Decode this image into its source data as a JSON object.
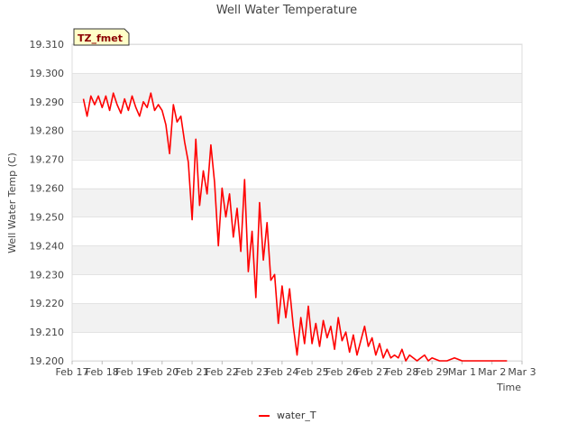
{
  "chart_data": {
    "type": "line",
    "title": "Well Water Temperature",
    "xlabel": "Time",
    "ylabel": "Well Water Temp (C)",
    "badge": "TZ_fmet",
    "x_ticks": [
      "Feb 17",
      "Feb 18",
      "Feb 19",
      "Feb 20",
      "Feb 21",
      "Feb 22",
      "Feb 23",
      "Feb 24",
      "Feb 25",
      "Feb 26",
      "Feb 27",
      "Feb 28",
      "Feb 29",
      "Mar 1",
      "Mar 2",
      "Mar 3"
    ],
    "y_ticks": [
      "19.200",
      "19.210",
      "19.220",
      "19.230",
      "19.240",
      "19.250",
      "19.260",
      "19.270",
      "19.280",
      "19.290",
      "19.300",
      "19.310"
    ],
    "xlim": [
      "Feb 17",
      "Mar 3"
    ],
    "ylim": [
      19.2,
      19.31
    ],
    "grid": "horizontal bands",
    "legend_position": "bottom-center",
    "series": [
      {
        "name": "water_T",
        "color": "#ff0000",
        "points": [
          [
            "Feb 17 09:00",
            19.291
          ],
          [
            "Feb 17 12:00",
            19.285
          ],
          [
            "Feb 17 15:00",
            19.292
          ],
          [
            "Feb 17 18:00",
            19.289
          ],
          [
            "Feb 17 21:00",
            19.292
          ],
          [
            "Feb 18 00:00",
            19.288
          ],
          [
            "Feb 18 03:00",
            19.292
          ],
          [
            "Feb 18 06:00",
            19.287
          ],
          [
            "Feb 18 09:00",
            19.293
          ],
          [
            "Feb 18 12:00",
            19.289
          ],
          [
            "Feb 18 15:00",
            19.286
          ],
          [
            "Feb 18 18:00",
            19.291
          ],
          [
            "Feb 18 21:00",
            19.287
          ],
          [
            "Feb 19 00:00",
            19.292
          ],
          [
            "Feb 19 03:00",
            19.288
          ],
          [
            "Feb 19 06:00",
            19.285
          ],
          [
            "Feb 19 09:00",
            19.29
          ],
          [
            "Feb 19 12:00",
            19.288
          ],
          [
            "Feb 19 15:00",
            19.293
          ],
          [
            "Feb 19 18:00",
            19.287
          ],
          [
            "Feb 19 21:00",
            19.289
          ],
          [
            "Feb 20 00:00",
            19.287
          ],
          [
            "Feb 20 03:00",
            19.282
          ],
          [
            "Feb 20 06:00",
            19.272
          ],
          [
            "Feb 20 09:00",
            19.289
          ],
          [
            "Feb 20 12:00",
            19.283
          ],
          [
            "Feb 20 15:00",
            19.285
          ],
          [
            "Feb 20 18:00",
            19.276
          ],
          [
            "Feb 20 21:00",
            19.269
          ],
          [
            "Feb 21 00:00",
            19.249
          ],
          [
            "Feb 21 03:00",
            19.277
          ],
          [
            "Feb 21 06:00",
            19.254
          ],
          [
            "Feb 21 09:00",
            19.266
          ],
          [
            "Feb 21 12:00",
            19.258
          ],
          [
            "Feb 21 15:00",
            19.275
          ],
          [
            "Feb 21 18:00",
            19.262
          ],
          [
            "Feb 21 21:00",
            19.24
          ],
          [
            "Feb 22 00:00",
            19.26
          ],
          [
            "Feb 22 03:00",
            19.25
          ],
          [
            "Feb 22 06:00",
            19.258
          ],
          [
            "Feb 22 09:00",
            19.243
          ],
          [
            "Feb 22 12:00",
            19.253
          ],
          [
            "Feb 22 15:00",
            19.238
          ],
          [
            "Feb 22 18:00",
            19.263
          ],
          [
            "Feb 22 21:00",
            19.231
          ],
          [
            "Feb 23 00:00",
            19.245
          ],
          [
            "Feb 23 03:00",
            19.222
          ],
          [
            "Feb 23 06:00",
            19.255
          ],
          [
            "Feb 23 09:00",
            19.235
          ],
          [
            "Feb 23 12:00",
            19.248
          ],
          [
            "Feb 23 15:00",
            19.228
          ],
          [
            "Feb 23 18:00",
            19.23
          ],
          [
            "Feb 23 21:00",
            19.213
          ],
          [
            "Feb 24 00:00",
            19.226
          ],
          [
            "Feb 24 03:00",
            19.215
          ],
          [
            "Feb 24 06:00",
            19.225
          ],
          [
            "Feb 24 09:00",
            19.212
          ],
          [
            "Feb 24 12:00",
            19.202
          ],
          [
            "Feb 24 15:00",
            19.215
          ],
          [
            "Feb 24 18:00",
            19.206
          ],
          [
            "Feb 24 21:00",
            19.219
          ],
          [
            "Feb 25 00:00",
            19.206
          ],
          [
            "Feb 25 03:00",
            19.213
          ],
          [
            "Feb 25 06:00",
            19.205
          ],
          [
            "Feb 25 09:00",
            19.214
          ],
          [
            "Feb 25 12:00",
            19.208
          ],
          [
            "Feb 25 15:00",
            19.212
          ],
          [
            "Feb 25 18:00",
            19.204
          ],
          [
            "Feb 25 21:00",
            19.215
          ],
          [
            "Feb 26 00:00",
            19.207
          ],
          [
            "Feb 26 03:00",
            19.21
          ],
          [
            "Feb 26 06:00",
            19.203
          ],
          [
            "Feb 26 09:00",
            19.209
          ],
          [
            "Feb 26 12:00",
            19.202
          ],
          [
            "Feb 26 15:00",
            19.207
          ],
          [
            "Feb 26 18:00",
            19.212
          ],
          [
            "Feb 26 21:00",
            19.205
          ],
          [
            "Feb 27 00:00",
            19.208
          ],
          [
            "Feb 27 03:00",
            19.202
          ],
          [
            "Feb 27 06:00",
            19.206
          ],
          [
            "Feb 27 09:00",
            19.201
          ],
          [
            "Feb 27 12:00",
            19.204
          ],
          [
            "Feb 27 15:00",
            19.201
          ],
          [
            "Feb 27 18:00",
            19.202
          ],
          [
            "Feb 27 21:00",
            19.201
          ],
          [
            "Feb 28 00:00",
            19.204
          ],
          [
            "Feb 28 03:00",
            19.2
          ],
          [
            "Feb 28 06:00",
            19.202
          ],
          [
            "Feb 28 09:00",
            19.201
          ],
          [
            "Feb 28 12:00",
            19.2
          ],
          [
            "Feb 28 15:00",
            19.201
          ],
          [
            "Feb 28 18:00",
            19.202
          ],
          [
            "Feb 28 21:00",
            19.2
          ],
          [
            "Feb 29 00:00",
            19.201
          ],
          [
            "Feb 29 06:00",
            19.2
          ],
          [
            "Feb 29 12:00",
            19.2
          ],
          [
            "Feb 29 18:00",
            19.201
          ],
          [
            "Mar 1 00:00",
            19.2
          ],
          [
            "Mar 1 06:00",
            19.2
          ],
          [
            "Mar 1 12:00",
            19.2
          ],
          [
            "Mar 1 18:00",
            19.2
          ],
          [
            "Mar 2 00:00",
            19.2
          ],
          [
            "Mar 2 06:00",
            19.2
          ],
          [
            "Mar 2 12:00",
            19.2
          ]
        ]
      }
    ]
  }
}
